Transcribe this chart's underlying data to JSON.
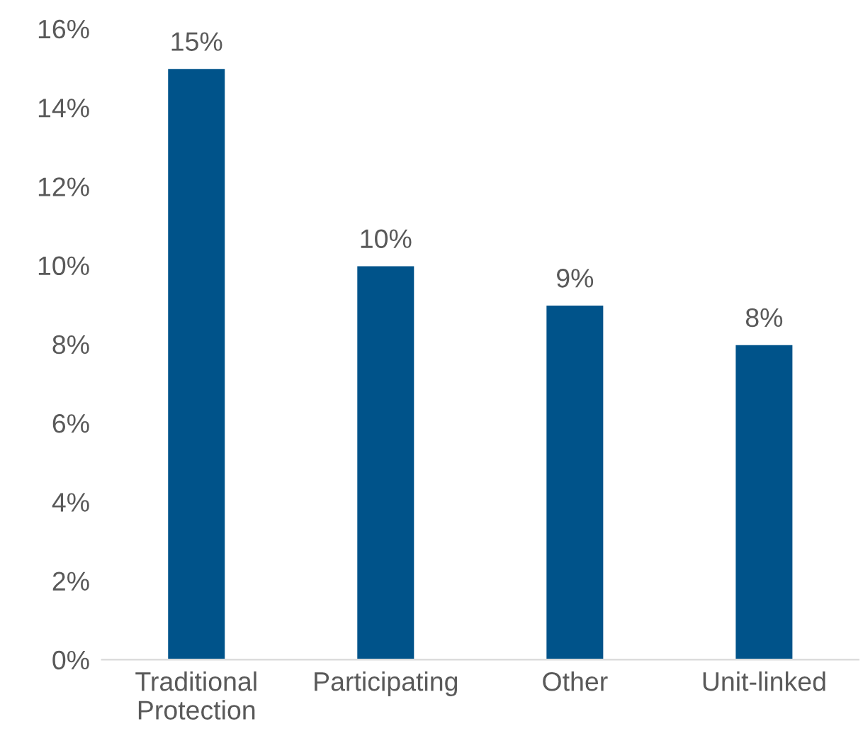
{
  "chart_data": {
    "type": "bar",
    "categories": [
      "Traditional\nProtection",
      "Participating",
      "Other",
      "Unit-linked"
    ],
    "values": [
      15,
      10,
      9,
      8
    ],
    "value_labels": [
      "15%",
      "10%",
      "9%",
      "8%"
    ],
    "color": "#00538a",
    "ylim": [
      0,
      16
    ],
    "yticks": [
      {
        "value": 0,
        "label": "0%"
      },
      {
        "value": 2,
        "label": "2%"
      },
      {
        "value": 4,
        "label": "4%"
      },
      {
        "value": 6,
        "label": "6%"
      },
      {
        "value": 8,
        "label": "8%"
      },
      {
        "value": 10,
        "label": "10%"
      },
      {
        "value": 12,
        "label": "12%"
      },
      {
        "value": 14,
        "label": "14%"
      },
      {
        "value": 16,
        "label": "16%"
      }
    ],
    "grid": false
  }
}
